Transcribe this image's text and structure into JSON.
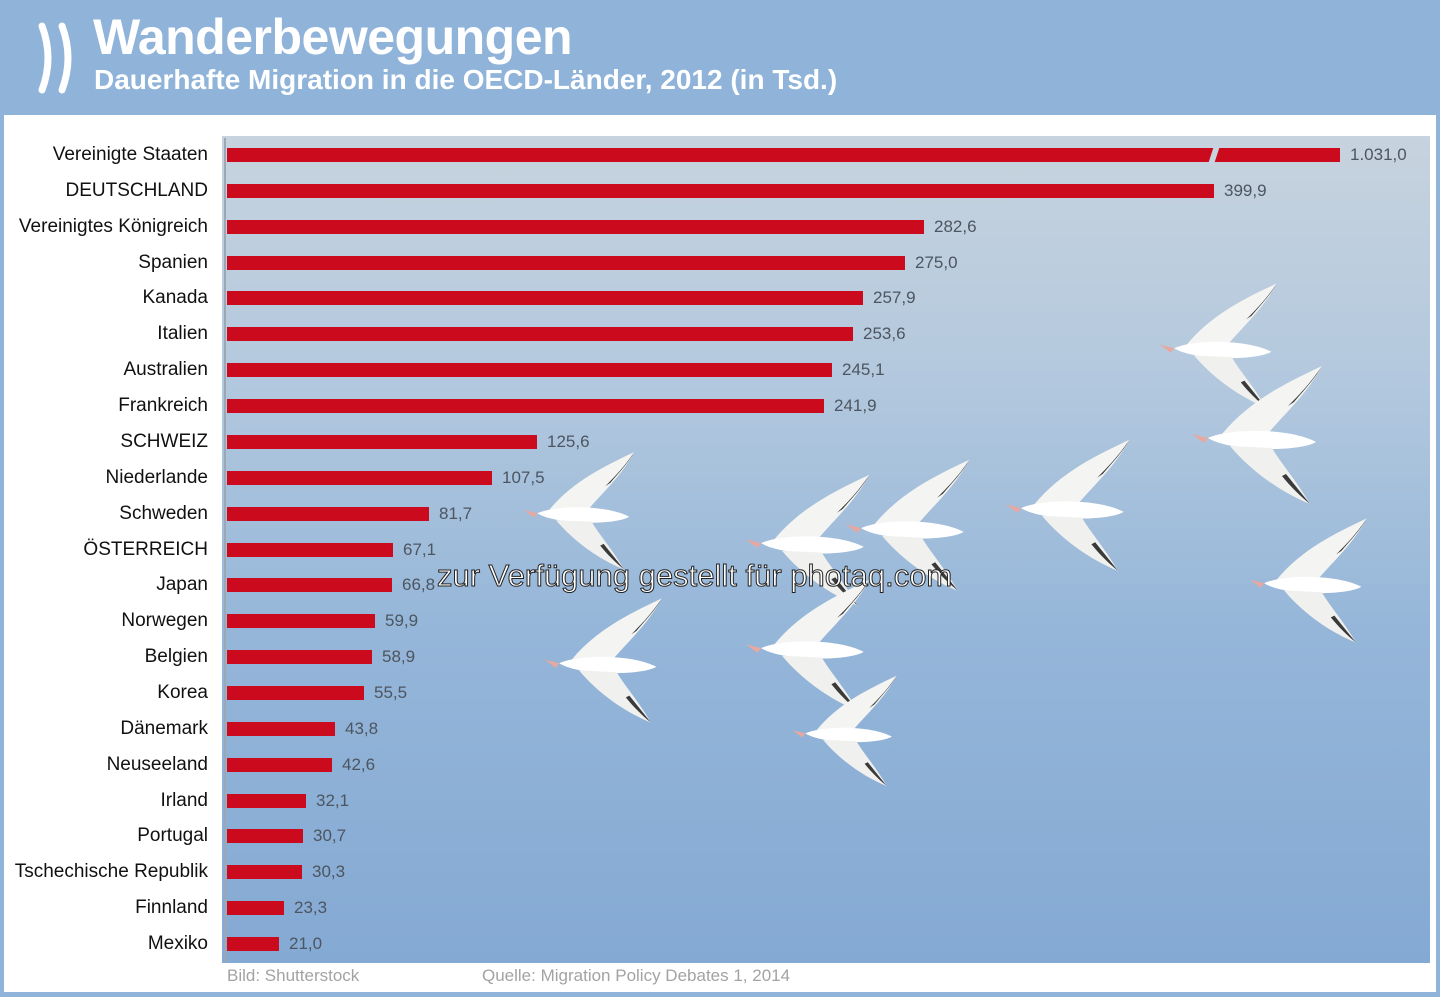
{
  "header": {
    "title": "Wanderbewegungen",
    "subtitle": "Dauerhafte Migration in die OECD-Länder, 2012 (in Tsd.)"
  },
  "chart_data": {
    "type": "bar",
    "orientation": "horizontal",
    "categories": [
      "Vereinigte Staaten",
      "DEUTSCHLAND",
      "Vereinigtes Königreich",
      "Spanien",
      "Kanada",
      "Italien",
      "Australien",
      "Frankreich",
      "SCHWEIZ",
      "Niederlande",
      "Schweden",
      "ÖSTERREICH",
      "Japan",
      "Norwegen",
      "Belgien",
      "Korea",
      "Dänemark",
      "Neuseeland",
      "Irland",
      "Portugal",
      "Tschechische Republik",
      "Finnland",
      "Mexiko"
    ],
    "values": [
      1031.0,
      399.9,
      282.6,
      275.0,
      257.9,
      253.6,
      245.1,
      241.9,
      125.6,
      107.5,
      81.7,
      67.1,
      66.8,
      59.9,
      58.9,
      55.5,
      43.8,
      42.6,
      32.1,
      30.7,
      30.3,
      23.3,
      21.0
    ],
    "value_labels": [
      "1.031,0",
      "399,9",
      "282,6",
      "275,0",
      "257,9",
      "253,6",
      "245,1",
      "241,9",
      "125,6",
      "107,5",
      "81,7",
      "67,1",
      "66,8",
      "59,9",
      "58,9",
      "55,5",
      "43,8",
      "42,6",
      "32,1",
      "30,7",
      "30,3",
      "23,3",
      "21,0"
    ],
    "broken_bar_index": 0,
    "bar_color": "#cc0a1e",
    "xlabel": "",
    "ylabel": ""
  },
  "watermark": "zur Verfügung gestellt für photaq.com",
  "footer": {
    "image_credit": "Bild: Shutterstock",
    "source": "Quelle: Migration Policy Debates 1, 2014"
  },
  "colors": {
    "header_bg": "#8fb3d9",
    "bar": "#cc0a1e"
  },
  "icons": {
    "logo": "oecd-chevrons-logo"
  }
}
